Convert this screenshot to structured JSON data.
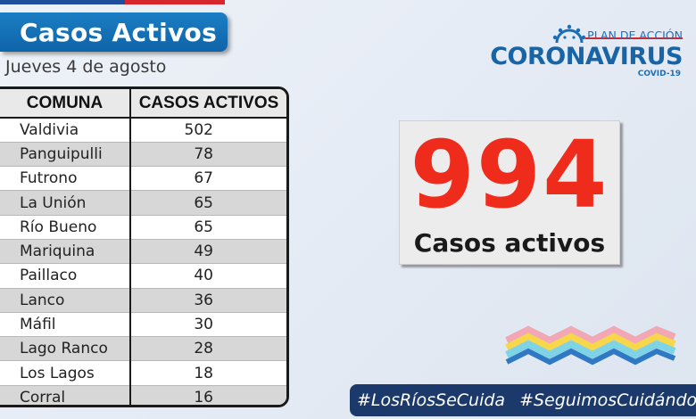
{
  "header": {
    "title": "Casos Activos",
    "date": "Jueves 4 de agosto"
  },
  "logo": {
    "top": "PLAN DE ACCIÓN",
    "main": "CORONAVIRUS",
    "sub": "COVID-19",
    "icon": "virus-icon"
  },
  "table": {
    "headers": [
      "COMUNA",
      "CASOS ACTIVOS"
    ],
    "rows": [
      {
        "comuna": "Valdivia",
        "casos": "502"
      },
      {
        "comuna": "Panguipulli",
        "casos": "78"
      },
      {
        "comuna": "Futrono",
        "casos": "67"
      },
      {
        "comuna": "La Unión",
        "casos": "65"
      },
      {
        "comuna": "Río Bueno",
        "casos": "65"
      },
      {
        "comuna": "Mariquina",
        "casos": "49"
      },
      {
        "comuna": "Paillaco",
        "casos": "40"
      },
      {
        "comuna": "Lanco",
        "casos": "36"
      },
      {
        "comuna": "Máfil",
        "casos": "30"
      },
      {
        "comuna": "Lago Ranco",
        "casos": "28"
      },
      {
        "comuna": "Los Lagos",
        "casos": "18"
      },
      {
        "comuna": "Corral",
        "casos": "16"
      }
    ]
  },
  "total": {
    "value": "994",
    "label": "Casos activos"
  },
  "hashtags": [
    "#LosRíosSeCuida",
    "#SeguimosCuidándonos"
  ],
  "colors": {
    "banner_blue": "#0f64a8",
    "total_red": "#ef2b1b",
    "hashtag_bar": "#1b3a6b"
  }
}
